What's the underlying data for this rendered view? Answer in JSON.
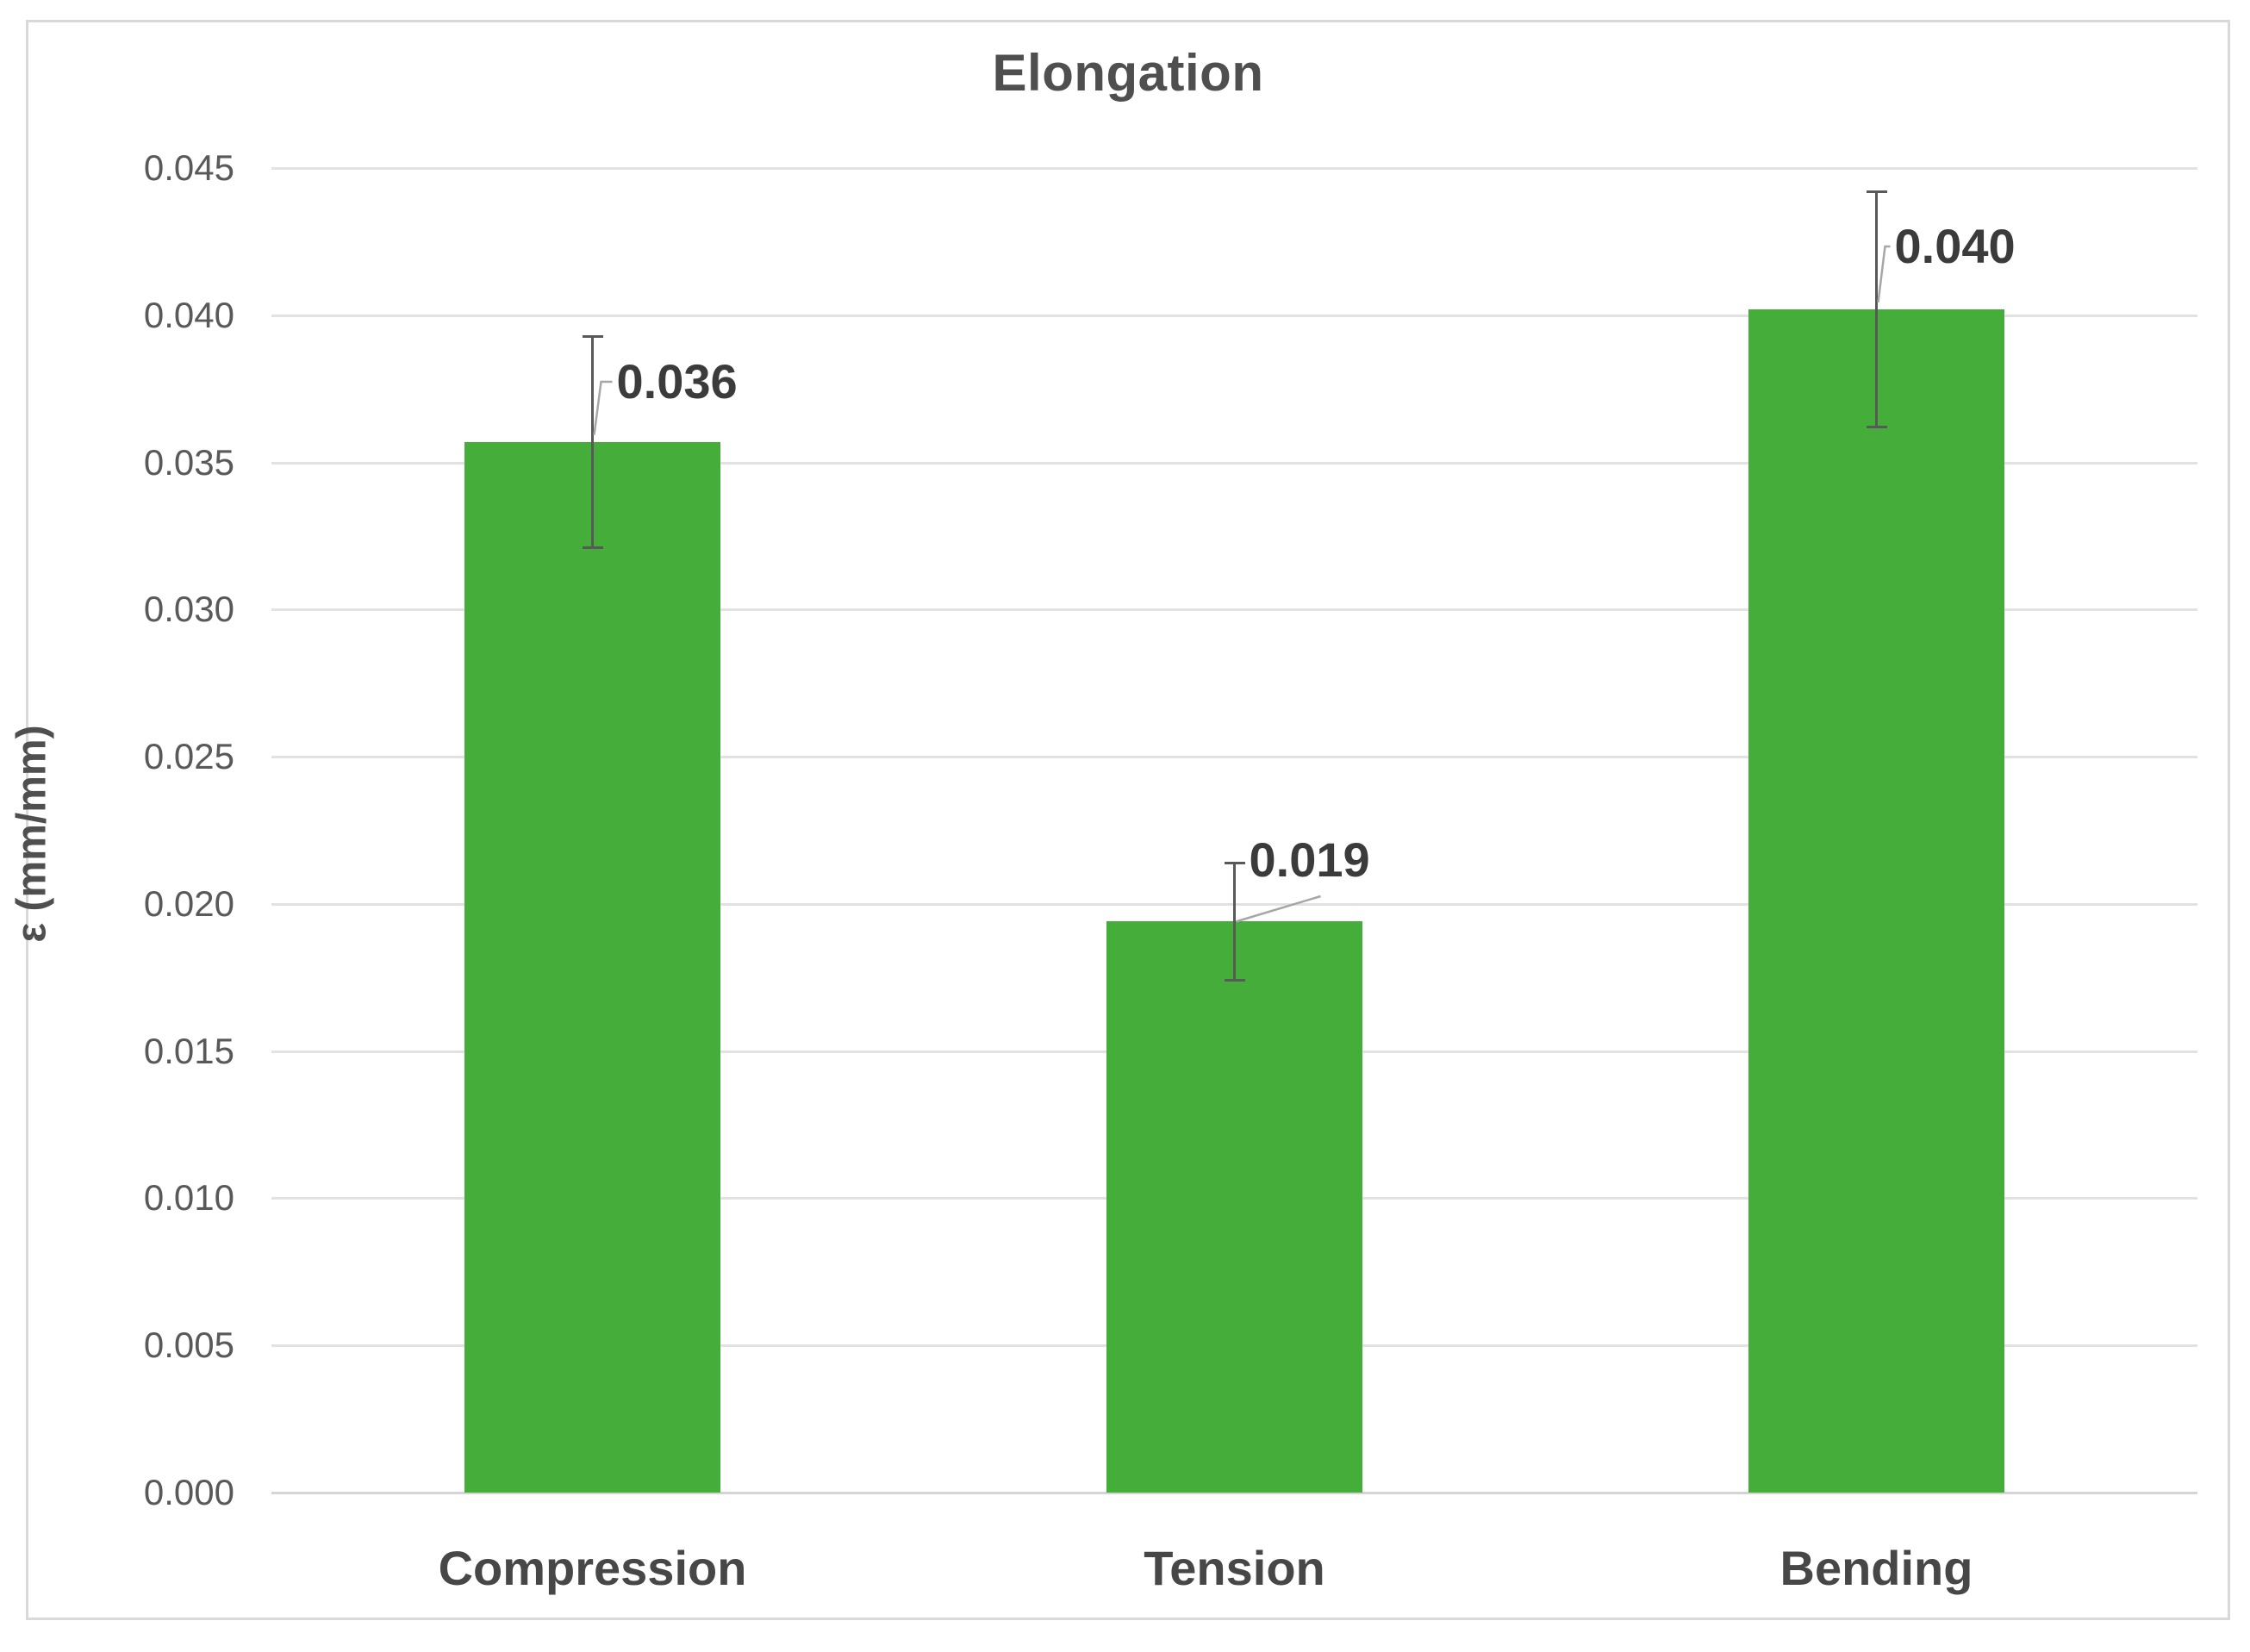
{
  "chart_data": {
    "type": "bar",
    "title": "Elongation",
    "xlabel": "",
    "ylabel": "ε (mm/mm)",
    "categories": [
      "Compression",
      "Tension",
      "Bending"
    ],
    "values": [
      0.0357,
      0.0194,
      0.0402
    ],
    "data_labels": [
      "0.036",
      "0.019",
      "0.040"
    ],
    "error_plus": [
      0.0036,
      0.002,
      0.004
    ],
    "error_minus": [
      0.0036,
      0.002,
      0.004
    ],
    "ylim": [
      0,
      0.045
    ],
    "ytick_labels": [
      "0.000",
      "0.005",
      "0.010",
      "0.015",
      "0.020",
      "0.025",
      "0.030",
      "0.035",
      "0.040",
      "0.045"
    ],
    "grid": true,
    "legend": "none",
    "bar_color": "#45ad39",
    "gridline_color": "#e2e2e2",
    "axis_line_color": "#d4d4d4",
    "error_bar_color": "#595959",
    "leader_line_color": "#a6a6a6",
    "text_color": "#4f4f4f"
  }
}
